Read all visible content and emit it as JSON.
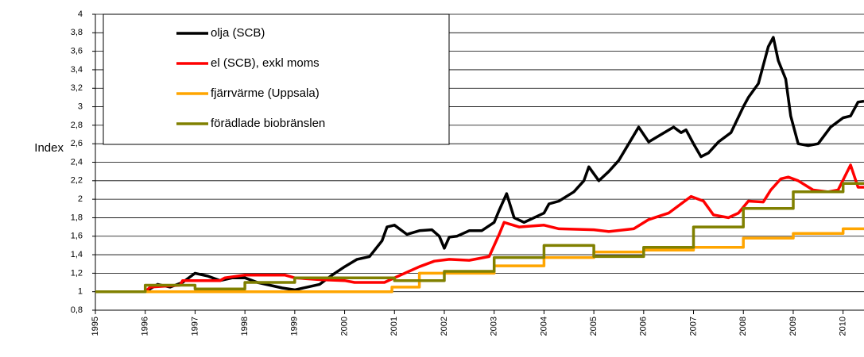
{
  "chart_data": {
    "type": "line",
    "y_label": "Index",
    "xlim": [
      1995,
      2010.42
    ],
    "ylim": [
      0.8,
      4
    ],
    "xticks": [
      1995,
      1996,
      1997,
      1998,
      1999,
      2000,
      2001,
      2002,
      2003,
      2004,
      2005,
      2006,
      2007,
      2008,
      2009,
      2010
    ],
    "yticks": [
      {
        "value": 0.8,
        "label": "0,8"
      },
      {
        "value": 1,
        "label": "1"
      },
      {
        "value": 1.2,
        "label": "1,2"
      },
      {
        "value": 1.4,
        "label": "1,4"
      },
      {
        "value": 1.6,
        "label": "1,6"
      },
      {
        "value": 1.8,
        "label": "1,8"
      },
      {
        "value": 2,
        "label": "2"
      },
      {
        "value": 2.2,
        "label": "2,2"
      },
      {
        "value": 2.4,
        "label": "2,4"
      },
      {
        "value": 2.6,
        "label": "2,6"
      },
      {
        "value": 2.8,
        "label": "2,8"
      },
      {
        "value": 3,
        "label": "3"
      },
      {
        "value": 3.2,
        "label": "3,2"
      },
      {
        "value": 3.4,
        "label": "3,4"
      },
      {
        "value": 3.6,
        "label": "3,6"
      },
      {
        "value": 3.8,
        "label": "3,8"
      },
      {
        "value": 4,
        "label": "4"
      }
    ],
    "grid": true,
    "legend": "upper left",
    "series": [
      {
        "name": "olja (SCB)",
        "color": "#000000",
        "x": [
          1995,
          1995.5,
          1996,
          1996.25,
          1996.5,
          1996.75,
          1997,
          1997.25,
          1997.5,
          1997.75,
          1998,
          1998.25,
          1998.5,
          1998.75,
          1999,
          1999.25,
          1999.5,
          1999.75,
          2000,
          2000.25,
          2000.5,
          2000.75,
          2000.85,
          2001,
          2001.25,
          2001.5,
          2001.75,
          2001.9,
          2002,
          2002.1,
          2002.25,
          2002.5,
          2002.75,
          2003,
          2003.1,
          2003.25,
          2003.4,
          2003.6,
          2003.8,
          2004,
          2004.1,
          2004.3,
          2004.6,
          2004.8,
          2004.9,
          2005.1,
          2005.3,
          2005.5,
          2005.7,
          2005.9,
          2006.1,
          2006.35,
          2006.6,
          2006.75,
          2006.85,
          2007,
          2007.15,
          2007.3,
          2007.5,
          2007.75,
          2008,
          2008.1,
          2008.3,
          2008.5,
          2008.6,
          2008.7,
          2008.85,
          2008.95,
          2009.1,
          2009.3,
          2009.5,
          2009.75,
          2010,
          2010.15,
          2010.3,
          2010.42
        ],
        "values": [
          1.0,
          1.0,
          1.0,
          1.08,
          1.05,
          1.1,
          1.2,
          1.17,
          1.12,
          1.15,
          1.15,
          1.1,
          1.07,
          1.04,
          1.02,
          1.05,
          1.08,
          1.18,
          1.27,
          1.35,
          1.38,
          1.55,
          1.7,
          1.72,
          1.62,
          1.66,
          1.67,
          1.6,
          1.47,
          1.59,
          1.6,
          1.66,
          1.66,
          1.75,
          1.88,
          2.06,
          1.8,
          1.75,
          1.8,
          1.85,
          1.95,
          1.98,
          2.08,
          2.2,
          2.35,
          2.2,
          2.3,
          2.42,
          2.6,
          2.78,
          2.62,
          2.7,
          2.78,
          2.72,
          2.75,
          2.6,
          2.46,
          2.5,
          2.62,
          2.72,
          3.0,
          3.1,
          3.25,
          3.65,
          3.75,
          3.5,
          3.3,
          2.9,
          2.6,
          2.58,
          2.6,
          2.78,
          2.88,
          2.9,
          3.05,
          3.06
        ]
      },
      {
        "name": "el (SCB), exkl moms",
        "color": "#ff0000",
        "x": [
          1995,
          1996,
          1996.1,
          1996.7,
          1996.75,
          1997.5,
          1997.6,
          1998,
          1998.8,
          1999,
          1999.5,
          2000,
          2000.2,
          2000.8,
          2001,
          2001.5,
          2001.8,
          2002.1,
          2002.5,
          2002.9,
          2003.1,
          2003.2,
          2003.5,
          2004,
          2004.3,
          2005,
          2005.3,
          2005.8,
          2006.1,
          2006.5,
          2006.8,
          2006.95,
          2007.2,
          2007.4,
          2007.7,
          2007.9,
          2008.1,
          2008.4,
          2008.55,
          2008.75,
          2008.9,
          2009.1,
          2009.4,
          2009.7,
          2009.9,
          2010.15,
          2010.3,
          2010.42
        ],
        "values": [
          1.0,
          1.0,
          1.05,
          1.07,
          1.12,
          1.12,
          1.15,
          1.18,
          1.18,
          1.15,
          1.13,
          1.12,
          1.1,
          1.1,
          1.15,
          1.27,
          1.33,
          1.35,
          1.34,
          1.38,
          1.62,
          1.75,
          1.7,
          1.72,
          1.68,
          1.67,
          1.65,
          1.68,
          1.78,
          1.85,
          1.97,
          2.03,
          1.98,
          1.83,
          1.8,
          1.85,
          1.98,
          1.97,
          2.1,
          2.22,
          2.24,
          2.2,
          2.1,
          2.08,
          2.1,
          2.37,
          2.13,
          2.13
        ]
      },
      {
        "name": "fjärrvärme (Uppsala)",
        "color": "#ffa500",
        "x": [
          1995,
          2000.95,
          2000.95,
          2001.5,
          2001.5,
          2003,
          2003,
          2004,
          2004,
          2005,
          2005,
          2006,
          2006,
          2007,
          2007,
          2008,
          2008,
          2009,
          2009,
          2010,
          2010,
          2010.42
        ],
        "values": [
          1.0,
          1.0,
          1.05,
          1.05,
          1.2,
          1.2,
          1.28,
          1.28,
          1.37,
          1.37,
          1.43,
          1.43,
          1.45,
          1.45,
          1.48,
          1.48,
          1.58,
          1.58,
          1.63,
          1.63,
          1.68,
          1.68
        ]
      },
      {
        "name": "förädlade biobränslen",
        "color": "#808000",
        "x": [
          1995,
          1996,
          1996,
          1997,
          1997,
          1998,
          1998,
          1999,
          1999,
          2001,
          2001,
          2002,
          2002,
          2003,
          2003,
          2004,
          2004,
          2005,
          2005,
          2006,
          2006,
          2007,
          2007,
          2008,
          2008,
          2009,
          2009,
          2010,
          2010,
          2010.42
        ],
        "values": [
          1.0,
          1.0,
          1.07,
          1.07,
          1.03,
          1.03,
          1.1,
          1.1,
          1.15,
          1.15,
          1.12,
          1.12,
          1.22,
          1.22,
          1.37,
          1.37,
          1.5,
          1.5,
          1.38,
          1.38,
          1.48,
          1.48,
          1.7,
          1.7,
          1.9,
          1.9,
          2.08,
          2.08,
          2.17,
          2.17
        ]
      }
    ]
  }
}
